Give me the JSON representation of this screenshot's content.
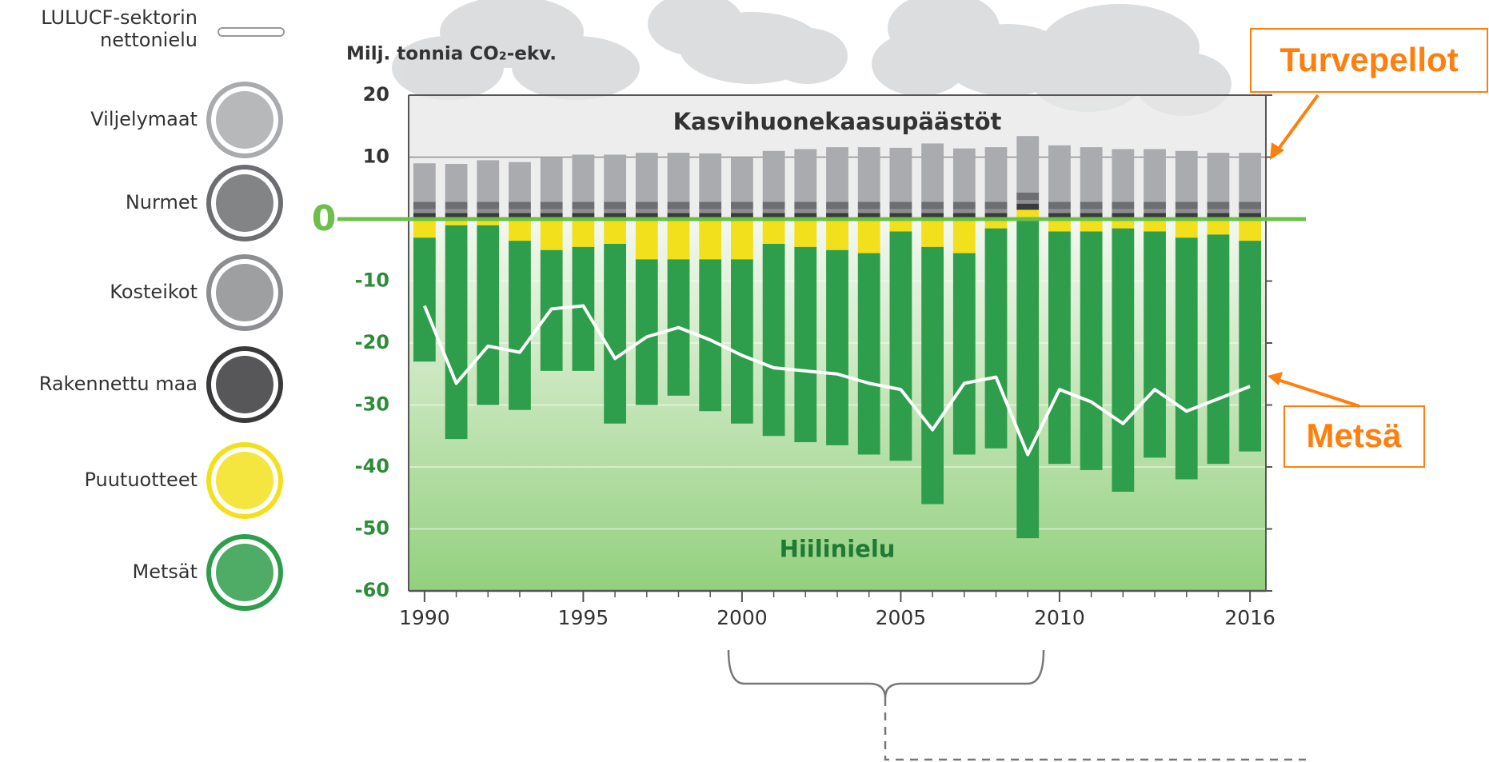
{
  "chart_data": {
    "type": "bar",
    "y_label": "Milj. tonnia CO₂-ekv.",
    "emissions_label": "Kasvihuonekaasupäästöt",
    "sink_label": "Hiilinielu",
    "callouts": [
      "Turvepellot",
      "Metsä"
    ],
    "callout_color": "#ff7f0e",
    "x": [
      1990,
      1991,
      1992,
      1993,
      1994,
      1995,
      1996,
      1997,
      1998,
      1999,
      2000,
      2001,
      2002,
      2003,
      2004,
      2005,
      2006,
      2007,
      2008,
      2009,
      2010,
      2011,
      2012,
      2013,
      2014,
      2015,
      2016
    ],
    "xlim": [
      1989.5,
      2016.5
    ],
    "xticks": [
      1990,
      1995,
      2000,
      2005,
      2010,
      2016
    ],
    "ylim": [
      -60,
      20
    ],
    "yticks": [
      20,
      10,
      0,
      -10,
      -20,
      -30,
      -40,
      -50,
      -60
    ],
    "grid": true,
    "series": [
      {
        "name": "Viljelymaat",
        "color": "#a9abae",
        "values": [
          6.2,
          6.1,
          6.7,
          6.4,
          7.2,
          7.6,
          7.6,
          7.9,
          7.9,
          7.8,
          7.2,
          8.2,
          8.5,
          8.8,
          8.8,
          8.7,
          9.4,
          8.6,
          8.8,
          9.1,
          9.1,
          8.8,
          8.5,
          8.5,
          8.2,
          7.9,
          7.9
        ]
      },
      {
        "name": "Nurmet",
        "color": "#6d6e71",
        "values": [
          1.2,
          1.2,
          1.2,
          1.2,
          1.2,
          1.2,
          1.2,
          1.2,
          1.2,
          1.2,
          1.2,
          1.2,
          1.2,
          1.2,
          1.2,
          1.2,
          1.2,
          1.2,
          1.2,
          1.2,
          1.2,
          1.2,
          1.2,
          1.2,
          1.2,
          1.2,
          1.2
        ]
      },
      {
        "name": "Kosteikot",
        "color": "#8c8e91",
        "values": [
          0.6,
          0.6,
          0.6,
          0.6,
          0.6,
          0.6,
          0.6,
          0.6,
          0.6,
          0.6,
          0.6,
          0.6,
          0.6,
          0.6,
          0.6,
          0.6,
          0.6,
          0.6,
          0.6,
          0.6,
          0.6,
          0.6,
          0.6,
          0.6,
          0.6,
          0.6,
          0.6
        ]
      },
      {
        "name": "Rakennettu maa",
        "color": "#3a3a3c",
        "values": [
          1,
          1,
          1,
          1,
          1,
          1,
          1,
          1,
          1,
          1,
          1,
          1,
          1,
          1,
          1,
          1,
          1,
          1,
          1,
          1,
          1,
          1,
          1,
          1,
          1,
          1,
          1
        ]
      },
      {
        "name": "Puutuotteet",
        "color": "#f2e01d",
        "values": [
          -3,
          -1,
          -1,
          -3.5,
          -5,
          -4.5,
          -4,
          -6.5,
          -6.5,
          -6.5,
          -6.5,
          -4,
          -4.5,
          -5,
          -5.5,
          -2,
          -4.5,
          -5.5,
          -1.5,
          1.5,
          -2,
          -2,
          -1.5,
          -2,
          -3,
          -2.5,
          -3.5
        ]
      },
      {
        "name": "Metsät",
        "color": "#2f9e4c",
        "values": [
          -20,
          -34.5,
          -29,
          -27.3,
          -19.5,
          -20,
          -29,
          -23.5,
          -22,
          -24.5,
          -26.5,
          -31,
          -31.5,
          -31.5,
          -32.5,
          -37,
          -41.5,
          -32.5,
          -35.5,
          -51.5,
          -37.5,
          -38.5,
          -42.5,
          -36.5,
          -39,
          -37,
          -34
        ]
      }
    ],
    "net": {
      "name": "LULUCF-sektorin nettonielu",
      "color": "#ffffff",
      "values": [
        -14,
        -26.5,
        -20.5,
        -21.5,
        -14.5,
        -14,
        -22.5,
        -19,
        -17.5,
        -19.5,
        -22,
        -24,
        -24.5,
        -25,
        -26.5,
        -27.5,
        -34,
        -26.5,
        -25.5,
        -38,
        -27.5,
        -29.5,
        -33,
        -27.5,
        -31,
        -29,
        -27
      ]
    }
  }
}
